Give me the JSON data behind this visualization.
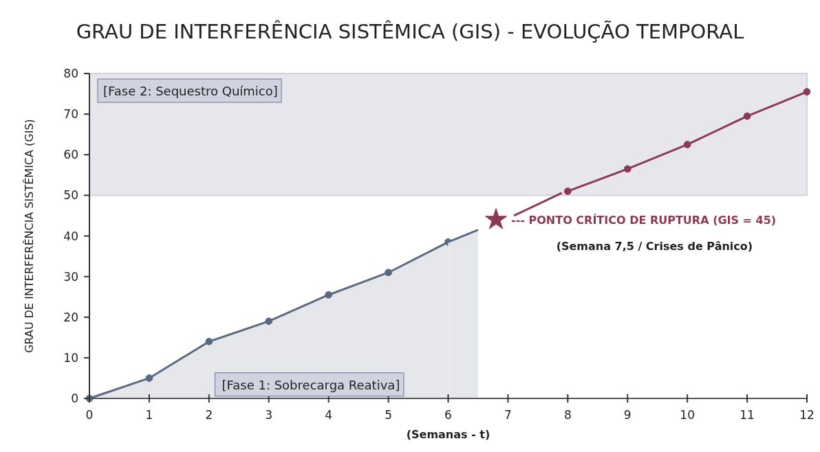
{
  "chart_data": {
    "type": "line",
    "title": "GRAU DE INTERFERÊNCIA SISTÊMICA (GIS) - EVOLUÇÃO TEMPORAL",
    "xlabel": "(Semanas - t)",
    "ylabel": "GRAU DE INTERFERÊNCIA SISTÊMICA (GIS)",
    "xlim": [
      0,
      12
    ],
    "xticks": [
      0,
      1,
      2,
      3,
      4,
      5,
      6,
      7,
      8,
      9,
      10,
      11,
      12
    ],
    "ylim": [
      0,
      80
    ],
    "yticks": [
      0,
      10,
      20,
      30,
      40,
      50,
      60,
      70,
      80
    ],
    "series": [
      {
        "type": "area",
        "color": "#5a6b80",
        "x": [
          0,
          1,
          2,
          3,
          4,
          5,
          6
        ],
        "values": [
          0,
          5,
          14,
          19,
          25.5,
          31,
          38.5
        ],
        "marker": "circle"
      },
      {
        "type": "area",
        "color": "#5a6b80",
        "x": [
          6,
          6.5
        ],
        "values": [
          38.5,
          41.5
        ],
        "marker": "none"
      },
      {
        "color": "#8b3a55",
        "x": [
          7.1,
          7.9
        ],
        "values": [
          45,
          50.6
        ]
      },
      {
        "color": "#8b3a55",
        "x": [
          8,
          9,
          10,
          11,
          12
        ],
        "values": [
          51,
          56.5,
          62.5,
          69.5,
          75.5
        ],
        "marker": "circle"
      },
      {
        "type": "scatter",
        "color": "#8b3a55",
        "x": [
          6.8
        ],
        "values": [
          44
        ],
        "marker": "star"
      }
    ],
    "bands": [
      {
        "axis": "y",
        "from": 50,
        "to": 80,
        "label": "[Fase 2: Sequestro Químico]",
        "color": "#e4e4ea"
      }
    ],
    "annotations": [
      "[Fase 1: Sobrecarga Reativa]",
      {
        "text": "--- PONTO CRÍTICO DE RUPTURA (GIS = 45)",
        "x": 6.8,
        "y": 44
      },
      "(Semana 7,5 / Crises de Pânico)"
    ],
    "grid": false
  }
}
